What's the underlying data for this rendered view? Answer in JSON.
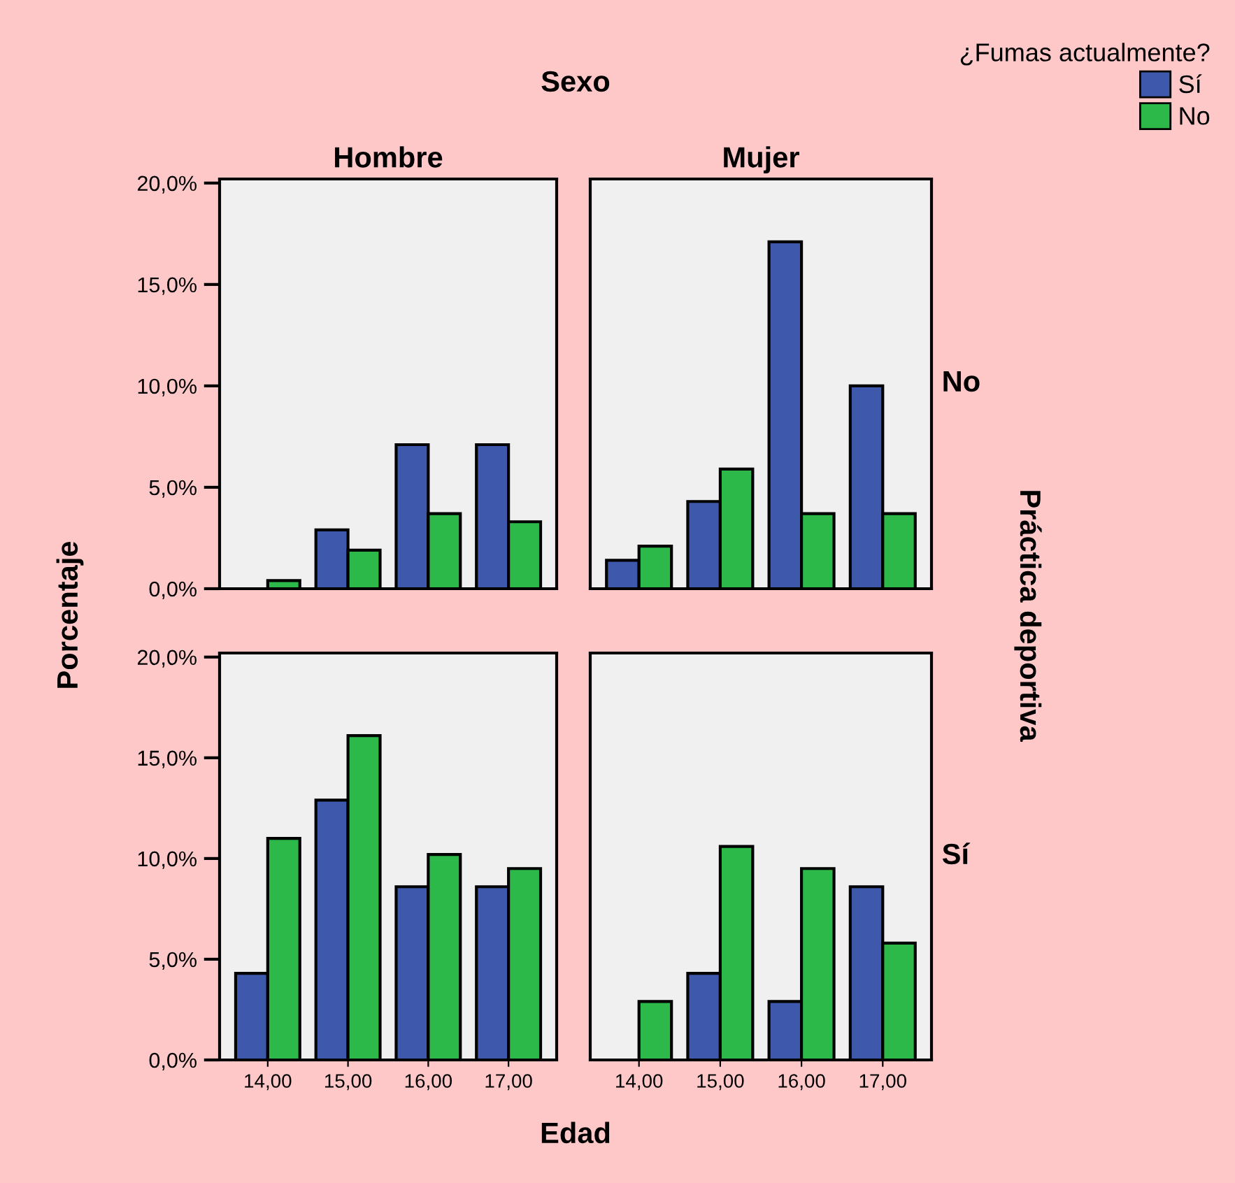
{
  "chart_data": [
    {
      "type": "bar",
      "title": "Hombre",
      "ylabel": "Porcentaje",
      "annotations": [
        "Sexo"
      ],
      "legend": "top right",
      "legend_title": "¿Fumas actualmente?",
      "categories": [
        "14,00",
        "15,00",
        "16,00",
        "17,00"
      ],
      "series": [
        {
          "name": "Sí",
          "color": "#3e58ac",
          "values": [
            0,
            2.9,
            7.1,
            7.1
          ]
        },
        {
          "name": "No",
          "color": "#2db84a",
          "values": [
            0.4,
            1.9,
            3.7,
            3.3
          ]
        }
      ],
      "ylim": [
        0,
        20.2
      ],
      "yticks": [
        {
          "value": 0,
          "label": "0,0%"
        },
        {
          "value": 5,
          "label": "5,0%"
        },
        {
          "value": 10,
          "label": "10,0%"
        },
        {
          "value": 15,
          "label": "15,0%"
        },
        {
          "value": 20,
          "label": "20,0%"
        }
      ],
      "tick_labels": "y"
    },
    {
      "type": "bar",
      "title": "Mujer",
      "y2label": "No",
      "annotations": [
        "Práctica deportiva"
      ],
      "categories": [
        "14,00",
        "15,00",
        "16,00",
        "17,00"
      ],
      "series": [
        {
          "color": "#3e58ac",
          "values": [
            1.4,
            4.3,
            17.1,
            10.0
          ]
        },
        {
          "color": "#2db84a",
          "values": [
            2.1,
            5.9,
            3.7,
            3.7
          ]
        }
      ],
      "ylim": [
        0,
        20.2
      ],
      "tick_labels": false
    },
    {
      "type": "bar",
      "xlabel": "Edad",
      "categories": [
        "14,00",
        "15,00",
        "16,00",
        "17,00"
      ],
      "series": [
        {
          "color": "#3e58ac",
          "values": [
            4.3,
            12.9,
            8.6,
            8.6
          ]
        },
        {
          "color": "#2db84a",
          "values": [
            11.0,
            16.1,
            10.2,
            9.5
          ]
        }
      ],
      "ylim": [
        0,
        20.2
      ],
      "yticks": [
        {
          "value": 0,
          "label": "0,0%"
        },
        {
          "value": 5,
          "label": "5,0%"
        },
        {
          "value": 10,
          "label": "10,0%"
        },
        {
          "value": 15,
          "label": "15,0%"
        },
        {
          "value": 20,
          "label": "20,0%"
        }
      ]
    },
    {
      "type": "bar",
      "y2label": "Sí",
      "categories": [
        "14,00",
        "15,00",
        "16,00",
        "17,00"
      ],
      "series": [
        {
          "color": "#3e58ac",
          "values": [
            0,
            4.3,
            2.9,
            8.6
          ]
        },
        {
          "color": "#2db84a",
          "values": [
            2.9,
            10.6,
            9.5,
            5.8
          ]
        }
      ],
      "ylim": [
        0,
        20.2
      ],
      "tick_labels": "x"
    }
  ]
}
